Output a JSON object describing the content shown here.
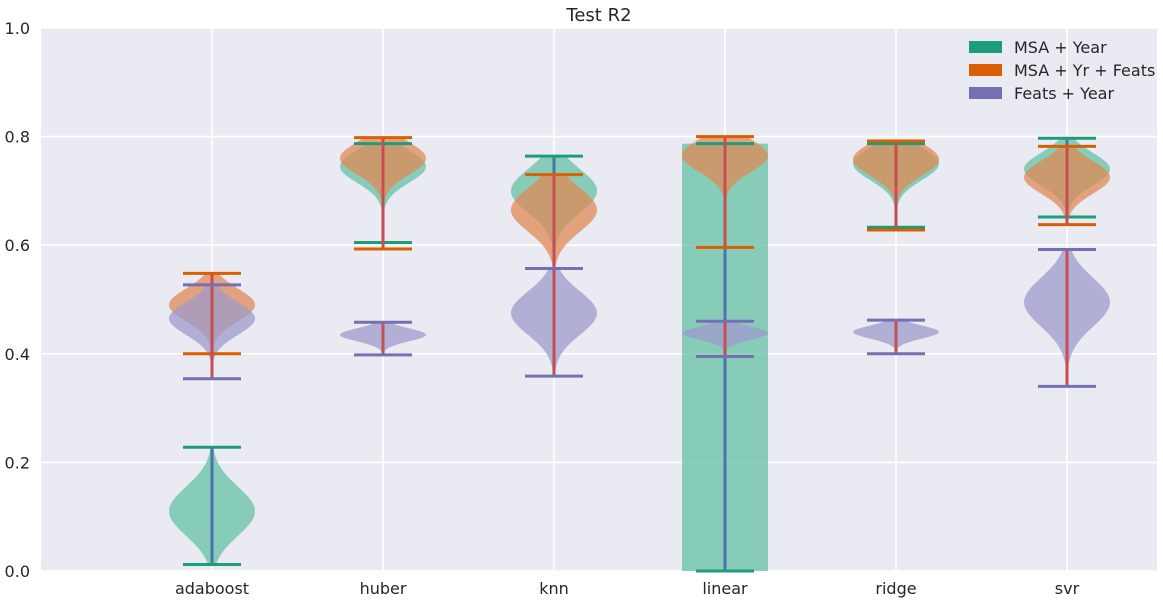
{
  "chart_data": {
    "type": "violin",
    "title": "Test R2",
    "xlabel": "",
    "ylabel": "",
    "categories": [
      "adaboost",
      "huber",
      "knn",
      "linear",
      "ridge",
      "svr"
    ],
    "ylim": [
      0,
      1.0
    ],
    "yticks": [
      "0.0",
      "0.2",
      "0.4",
      "0.6",
      "0.8",
      "1.0"
    ],
    "grid": true,
    "legend_position": "top-right",
    "series": [
      {
        "name": "MSA + Year",
        "color": "#1b9e77",
        "body_color": "#66c2a5",
        "line_color": "#4c72b0",
        "cap_color": "#1b9e77",
        "violins": [
          {
            "min": 0.012,
            "max": 0.228,
            "mode": 0.11,
            "spread": 0.045
          },
          {
            "min": 0.605,
            "max": 0.787,
            "mode": 0.745,
            "spread": 0.03
          },
          {
            "min": 0.557,
            "max": 0.764,
            "mode": 0.7,
            "spread": 0.04
          },
          {
            "min": 0.0,
            "max": 0.787,
            "mode": 0.0,
            "spread": 0.0,
            "degenerate": true
          },
          {
            "min": 0.633,
            "max": 0.787,
            "mode": 0.75,
            "spread": 0.03
          },
          {
            "min": 0.652,
            "max": 0.797,
            "mode": 0.74,
            "spread": 0.03
          }
        ]
      },
      {
        "name": "MSA + Yr + Feats",
        "color": "#d95f02",
        "body_color": "#e08a57",
        "line_color": "#c44e52",
        "cap_color": "#d95f02",
        "violins": [
          {
            "min": 0.4,
            "max": 0.548,
            "mode": 0.49,
            "spread": 0.03
          },
          {
            "min": 0.593,
            "max": 0.798,
            "mode": 0.76,
            "spread": 0.03
          },
          {
            "min": 0.557,
            "max": 0.73,
            "mode": 0.665,
            "spread": 0.04
          },
          {
            "min": 0.596,
            "max": 0.8,
            "mode": 0.765,
            "spread": 0.03
          },
          {
            "min": 0.628,
            "max": 0.792,
            "mode": 0.758,
            "spread": 0.03
          },
          {
            "min": 0.638,
            "max": 0.782,
            "mode": 0.725,
            "spread": 0.03
          }
        ]
      },
      {
        "name": "Feats + Year",
        "color": "#7570b3",
        "body_color": "#9e9bcc",
        "line_color": "#c44e52",
        "cap_color": "#7570b3",
        "violins": [
          {
            "min": 0.354,
            "max": 0.527,
            "mode": 0.465,
            "spread": 0.03
          },
          {
            "min": 0.398,
            "max": 0.458,
            "mode": 0.435,
            "spread": 0.012
          },
          {
            "min": 0.359,
            "max": 0.557,
            "mode": 0.475,
            "spread": 0.04
          },
          {
            "min": 0.395,
            "max": 0.46,
            "mode": 0.438,
            "spread": 0.012
          },
          {
            "min": 0.4,
            "max": 0.462,
            "mode": 0.44,
            "spread": 0.012
          },
          {
            "min": 0.34,
            "max": 0.592,
            "mode": 0.495,
            "spread": 0.045
          }
        ]
      }
    ]
  }
}
